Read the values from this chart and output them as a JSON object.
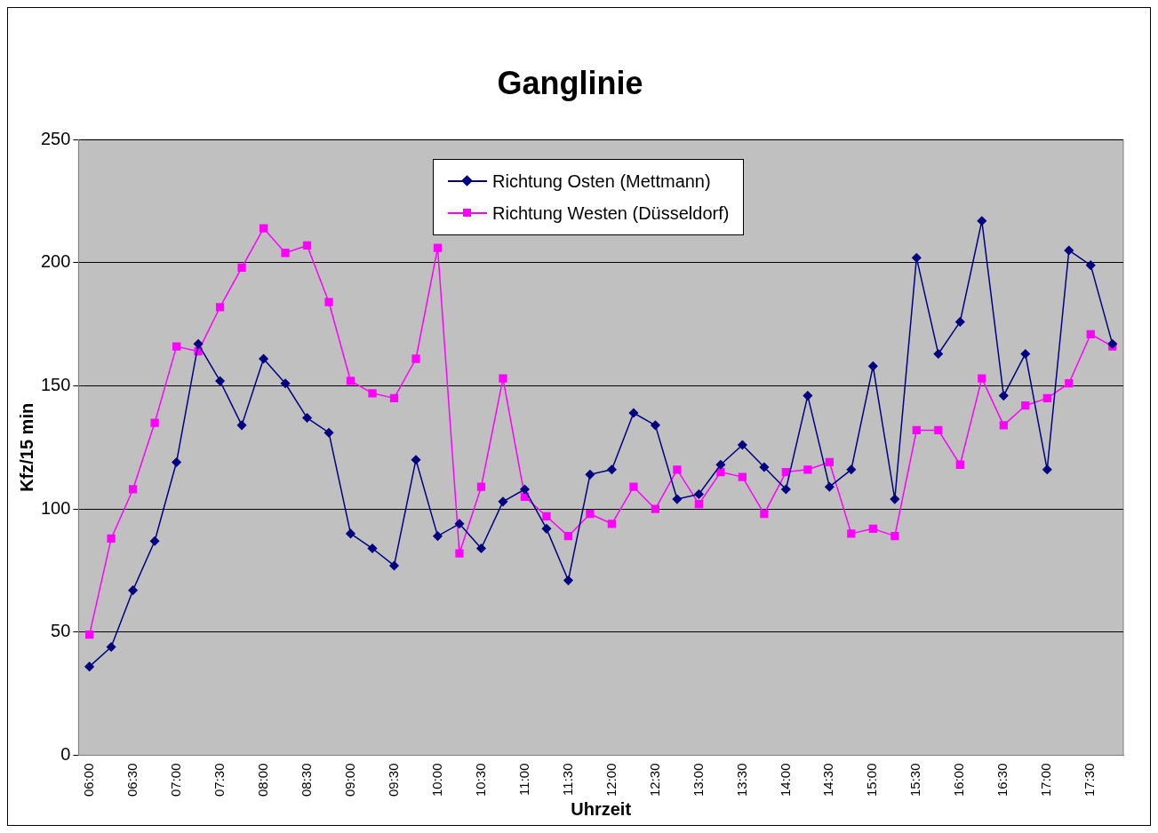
{
  "chart_data": {
    "type": "line",
    "title": "Ganglinie",
    "xlabel": "Uhrzeit",
    "ylabel": "Kfz/15 min",
    "categories": [
      "06:00",
      null,
      "06:30",
      null,
      "07:00",
      null,
      "07:30",
      null,
      "08:00",
      null,
      "08:30",
      null,
      "09:00",
      null,
      "09:30",
      null,
      "10:00",
      null,
      "10:30",
      null,
      "11:00",
      null,
      "11:30",
      null,
      "12:00",
      null,
      "12:30",
      null,
      "13:00",
      null,
      "13:30",
      null,
      "14:00",
      null,
      "14:30",
      null,
      "15:00",
      null,
      "15:30",
      null,
      "16:00",
      null,
      "16:30",
      null,
      "17:00",
      null,
      "17:30",
      null
    ],
    "series": [
      {
        "name": "Richtung Osten (Mettmann)",
        "color": "#000080",
        "marker": "diamond",
        "values": [
          36,
          44,
          67,
          87,
          119,
          167,
          152,
          134,
          161,
          151,
          137,
          131,
          90,
          84,
          77,
          120,
          89,
          94,
          84,
          103,
          108,
          92,
          71,
          114,
          116,
          139,
          134,
          104,
          106,
          118,
          126,
          117,
          108,
          146,
          109,
          116,
          158,
          104,
          202,
          163,
          176,
          217,
          146,
          163,
          116,
          205,
          199,
          167
        ]
      },
      {
        "name": "Richtung Westen (Düsseldorf)",
        "color": "#ff00ff",
        "marker": "square",
        "values": [
          49,
          88,
          108,
          135,
          166,
          164,
          182,
          198,
          214,
          204,
          207,
          184,
          152,
          147,
          145,
          161,
          206,
          82,
          109,
          153,
          105,
          97,
          89,
          98,
          94,
          109,
          100,
          116,
          102,
          115,
          113,
          98,
          115,
          116,
          119,
          90,
          92,
          89,
          132,
          132,
          118,
          153,
          134,
          142,
          145,
          151,
          171,
          166
        ]
      }
    ],
    "ylim": [
      0,
      250
    ],
    "yticks": [
      0,
      50,
      100,
      150,
      200,
      250
    ],
    "grid": "y",
    "legend": "top",
    "line_style": "solid"
  }
}
